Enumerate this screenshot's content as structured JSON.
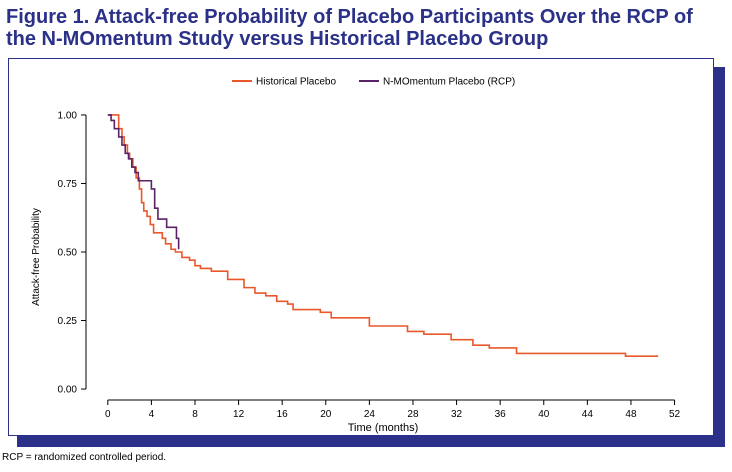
{
  "figure": {
    "title": "Figure 1. Attack-free Probability of Placebo Participants Over the RCP of the N-MOmentum Study versus Historical Placebo Group",
    "footnote": "RCP = randomized controlled period."
  },
  "colors": {
    "title": "#2b3188",
    "panel_shadow": "#2b3188",
    "historical": "#e8582a",
    "rcp": "#5b2367"
  },
  "chart_data": {
    "type": "line",
    "step": true,
    "title": "",
    "xlabel": "Time (months)",
    "ylabel": "Attack-free Probability",
    "xlim": [
      -2,
      52.5
    ],
    "ylim": [
      -0.04,
      1.04
    ],
    "xticks": [
      0,
      4,
      8,
      12,
      16,
      20,
      24,
      28,
      32,
      36,
      40,
      44,
      48,
      52
    ],
    "yticks": [
      0.0,
      0.25,
      0.5,
      0.75,
      1.0
    ],
    "ytick_labels": [
      "0.00",
      "0.25",
      "0.50",
      "0.75",
      "1.00"
    ],
    "grid": false,
    "legend_position": "top",
    "series": [
      {
        "name": "Historical Placebo",
        "color": "#e8582a",
        "x": [
          0,
          1.0,
          1.3,
          1.5,
          1.8,
          2.0,
          2.3,
          2.6,
          2.9,
          3.1,
          3.3,
          3.6,
          3.9,
          4.2,
          5.0,
          5.3,
          5.8,
          6.2,
          6.8,
          7.5,
          8.0,
          8.5,
          9.5,
          11.0,
          12.5,
          13.5,
          14.5,
          15.5,
          16.5,
          17.0,
          19.5,
          20.5,
          24.0,
          27.5,
          29.0,
          31.5,
          33.5,
          35.0,
          37.5,
          44.0,
          47.5,
          50.5
        ],
        "y": [
          1.0,
          0.95,
          0.92,
          0.89,
          0.86,
          0.84,
          0.81,
          0.77,
          0.73,
          0.68,
          0.65,
          0.63,
          0.6,
          0.57,
          0.55,
          0.53,
          0.51,
          0.5,
          0.48,
          0.47,
          0.45,
          0.44,
          0.43,
          0.4,
          0.37,
          0.35,
          0.34,
          0.32,
          0.31,
          0.29,
          0.28,
          0.26,
          0.23,
          0.21,
          0.2,
          0.18,
          0.16,
          0.15,
          0.13,
          0.13,
          0.12,
          0.12
        ]
      },
      {
        "name": "N-MOmentum Placebo (RCP)",
        "color": "#5b2367",
        "x": [
          0,
          0.3,
          0.6,
          1.0,
          1.3,
          1.6,
          1.9,
          2.2,
          2.5,
          2.8,
          3.1,
          4.0,
          4.3,
          4.6,
          5.4,
          6.3,
          6.5
        ],
        "y": [
          1.0,
          0.98,
          0.95,
          0.92,
          0.89,
          0.86,
          0.84,
          0.81,
          0.79,
          0.76,
          0.76,
          0.73,
          0.66,
          0.62,
          0.59,
          0.55,
          0.51
        ]
      }
    ]
  }
}
